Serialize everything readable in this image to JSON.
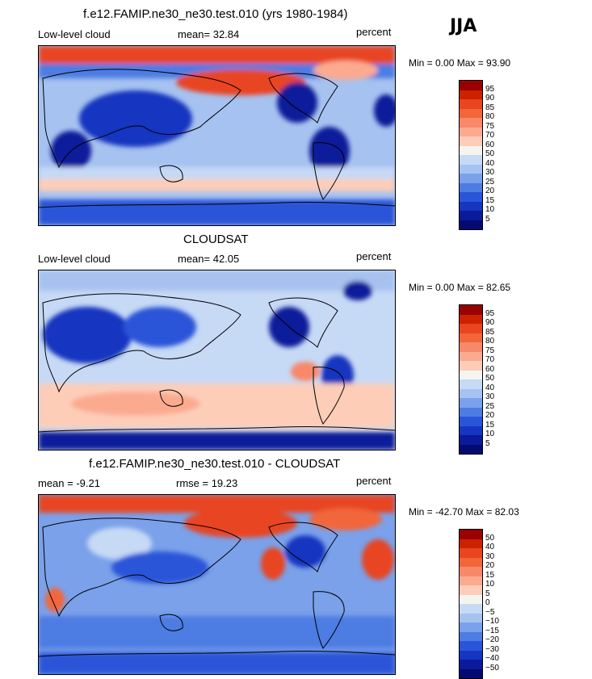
{
  "season": "JJA",
  "panels": [
    {
      "title": "f.e12.FAMIP.ne30_ne30.test.010 (yrs 1980-1984)",
      "left_label": "Low-level cloud",
      "mid_label": "mean=  32.84",
      "units": "percent",
      "minmax": "Min =   0.00 Max =  93.90"
    },
    {
      "title": "CLOUDSAT",
      "left_label": "Low-level cloud",
      "mid_label": "mean=  42.05",
      "units": "percent",
      "minmax": "Min =   0.00 Max =  82.65"
    },
    {
      "title": "f.e12.FAMIP.ne30_ne30.test.010 - CLOUDSAT",
      "left_label": "mean =   -9.21",
      "mid_label": "rmse =  19.23",
      "units": "percent",
      "minmax": "Min = -42.70 Max =  82.03"
    }
  ],
  "chart_data": [
    {
      "type": "heatmap",
      "title": "f.e12.FAMIP.ne30_ne30.test.010 (yrs 1980-1984)",
      "variable": "Low-level cloud",
      "units": "percent",
      "mean": 32.84,
      "min": 0.0,
      "max": 93.9,
      "levels": [
        "95",
        "90",
        "85",
        "80",
        "75",
        "70",
        "60",
        "50",
        "40",
        "30",
        "25",
        "20",
        "15",
        "10",
        "5"
      ],
      "colors": [
        "#990000",
        "#cc2200",
        "#e84520",
        "#f2663a",
        "#f7886a",
        "#fbaa90",
        "#fdcdb8",
        "#f5f5f0",
        "#c6d9f5",
        "#a6c2f0",
        "#7aa1ea",
        "#4d7ce3",
        "#2a55d8",
        "#1436c0",
        "#0a1a9a",
        "#050a70"
      ]
    },
    {
      "type": "heatmap",
      "title": "CLOUDSAT",
      "variable": "Low-level cloud",
      "units": "percent",
      "mean": 42.05,
      "min": 0.0,
      "max": 82.65,
      "levels": [
        "95",
        "90",
        "85",
        "80",
        "75",
        "70",
        "60",
        "50",
        "40",
        "30",
        "25",
        "20",
        "15",
        "10",
        "5"
      ],
      "colors": [
        "#990000",
        "#cc2200",
        "#e84520",
        "#f2663a",
        "#f7886a",
        "#fbaa90",
        "#fdcdb8",
        "#f5f5f0",
        "#c6d9f5",
        "#a6c2f0",
        "#7aa1ea",
        "#4d7ce3",
        "#2a55d8",
        "#1436c0",
        "#0a1a9a",
        "#050a70"
      ]
    },
    {
      "type": "heatmap",
      "title": "f.e12.FAMIP.ne30_ne30.test.010 - CLOUDSAT",
      "variable": "difference",
      "units": "percent",
      "mean": -9.21,
      "rmse": 19.23,
      "min": -42.7,
      "max": 82.03,
      "levels": [
        "50",
        "40",
        "30",
        "20",
        "15",
        "10",
        "5",
        "0",
        "−5",
        "−10",
        "−15",
        "−20",
        "−30",
        "−40",
        "−50"
      ],
      "colors": [
        "#990000",
        "#cc2200",
        "#e84520",
        "#f2663a",
        "#f7886a",
        "#fbaa90",
        "#fdcdb8",
        "#f5f5f0",
        "#c6d9f5",
        "#a6c2f0",
        "#7aa1ea",
        "#4d7ce3",
        "#2a55d8",
        "#1436c0",
        "#0a1a9a",
        "#050a70"
      ]
    }
  ]
}
